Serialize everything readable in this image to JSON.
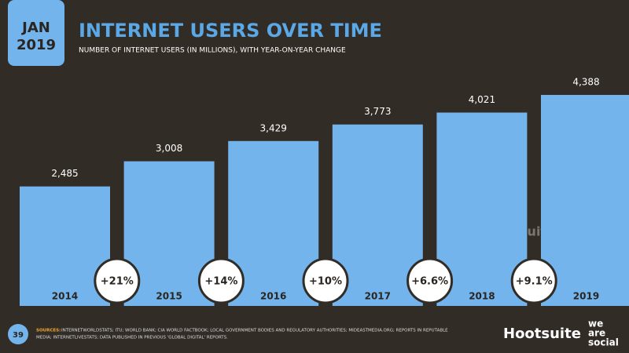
{
  "chart_data": {
    "type": "bar",
    "title": "INTERNET USERS OVER TIME",
    "subtitle": "NUMBER OF INTERNET USERS (IN MILLIONS), WITH YEAR-ON-YEAR CHANGE",
    "categories": [
      "2014",
      "2015",
      "2016",
      "2017",
      "2018",
      "2019"
    ],
    "values": [
      2485,
      3008,
      3429,
      3773,
      4021,
      4388
    ],
    "value_labels": [
      "2,485",
      "3,008",
      "3,429",
      "3,773",
      "4,021",
      "4,388"
    ],
    "color": "#72b4eb",
    "ylim": [
      0,
      4600
    ],
    "yoy_change": {
      "values": [
        21,
        14,
        10,
        6.6,
        9.1
      ],
      "value_labels": [
        "+21%",
        "+14%",
        "+10%",
        "+6.6%",
        "+9.1%"
      ]
    }
  },
  "header": {
    "month": "JAN",
    "year": "2019"
  },
  "footer": {
    "page": "39",
    "sources_label": "SOURCES:",
    "sources_line1": "INTERNETWORLDSTATS; ITU; WORLD BANK; CIA WORLD FACTBOOK; LOCAL GOVERNMENT BODIES AND REGULATORY AUTHORITIES; MIDEASTMEDIA.ORG; REPORTS IN REPUTABLE",
    "sources_line2": "MEDIA; INTERNETLIVESTATS; DATA PUBLISHED IN PREVIOUS 'GLOBAL DIGITAL' REPORTS.",
    "brand1": "Hootsuite",
    "brand2a": "we",
    "brand2b": "are",
    "brand2c": "social"
  }
}
